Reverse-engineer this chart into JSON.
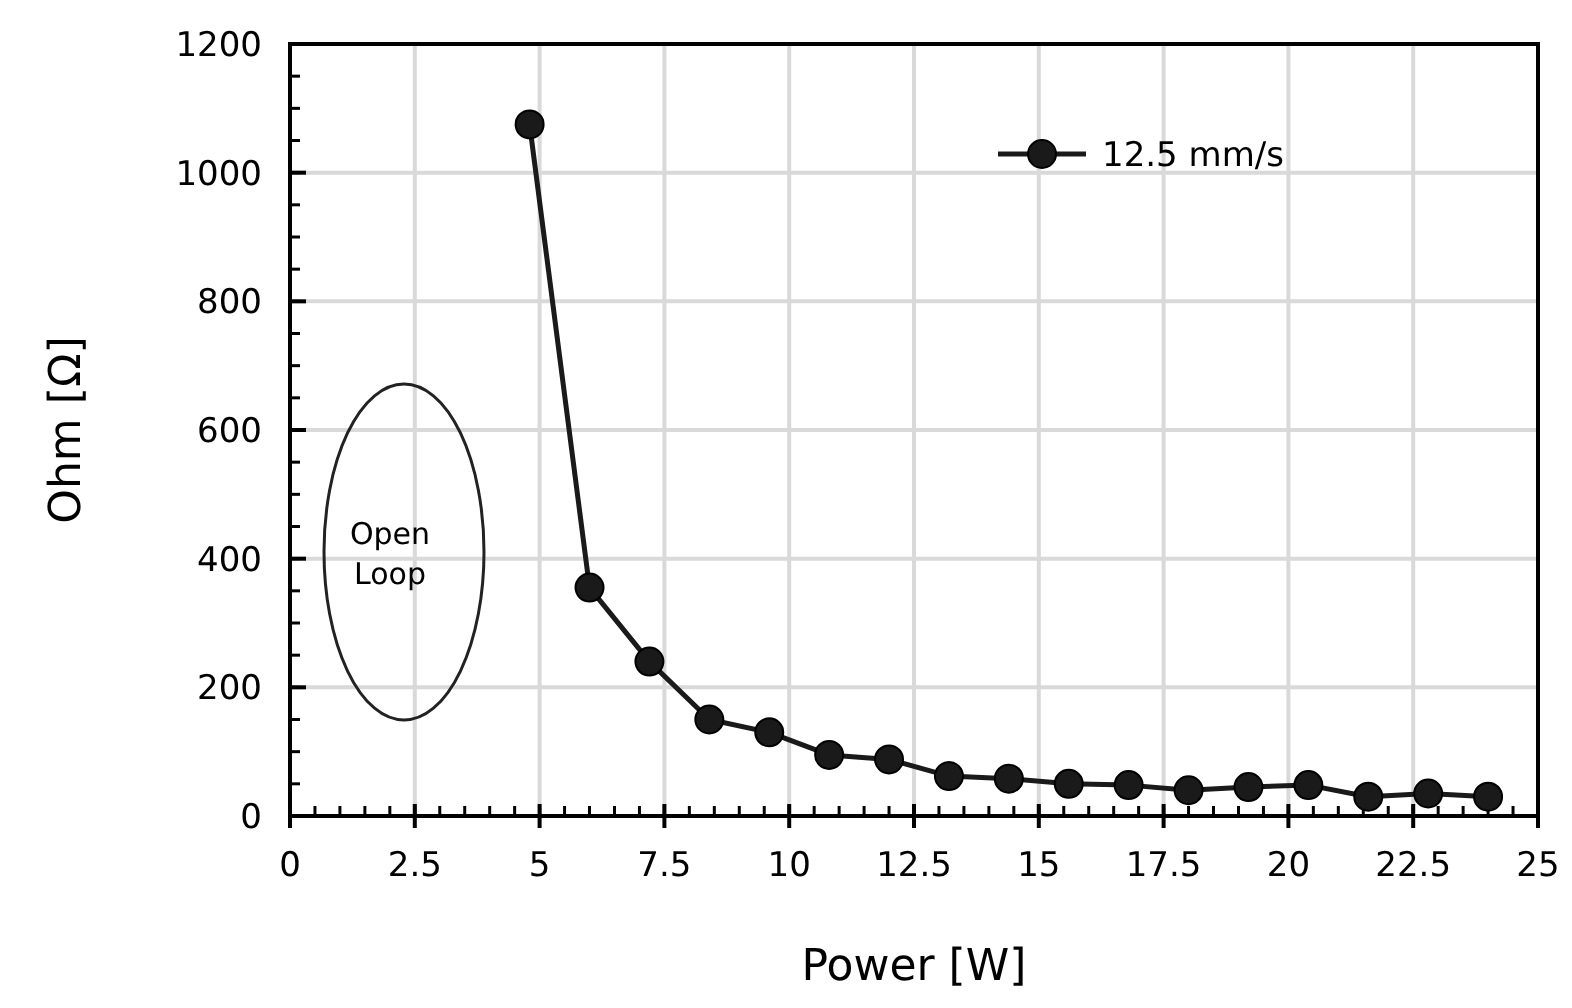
{
  "chart_data": {
    "type": "line",
    "xlabel": "Power [W]",
    "ylabel": "Ohm [Ω]",
    "xlim": [
      0,
      25
    ],
    "ylim": [
      0,
      1200
    ],
    "xticks": [
      0,
      {
        "value": 2.5,
        "label": "2.5"
      },
      5,
      {
        "value": 7.5,
        "label": "7.5"
      },
      10,
      {
        "value": 12.5,
        "label": "12.5"
      },
      15,
      {
        "value": 17.5,
        "label": "17.5"
      },
      20,
      {
        "value": 22.5,
        "label": "22.5"
      },
      25
    ],
    "yticks": [
      0,
      200,
      400,
      600,
      800,
      1000,
      1200
    ],
    "grid": true,
    "legend": "top right",
    "marker": "circle",
    "line_style": "solid",
    "annotations": [
      "Open Loop"
    ],
    "series": [
      {
        "name": "12.5 mm/s",
        "color": "#1a1a1a",
        "x": [
          4.8,
          6.0,
          7.2,
          8.4,
          9.6,
          10.8,
          12,
          13.2,
          14.4,
          15.6,
          16.8,
          18,
          19.2,
          20.4,
          21.6,
          22.8,
          24
        ],
        "values": [
          1075,
          355,
          240,
          150,
          130,
          95,
          88,
          62,
          58,
          50,
          48,
          40,
          45,
          48,
          30,
          35,
          30
        ]
      }
    ]
  }
}
